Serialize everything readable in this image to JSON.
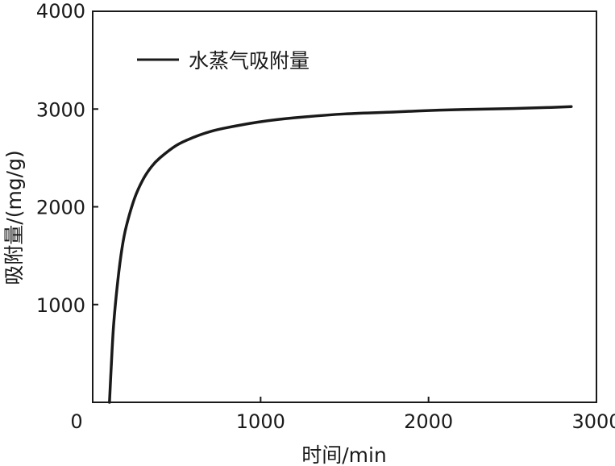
{
  "chart_data": {
    "type": "line",
    "xlabel": "时间/min",
    "ylabel": "吸附量/(mg/g)",
    "xlim": [
      0,
      3000
    ],
    "ylim": [
      0,
      4000
    ],
    "x_ticks": [
      "0",
      "1000",
      "2000",
      "3000"
    ],
    "y_ticks": [
      "1000",
      "2000",
      "3000",
      "4000"
    ],
    "x_tick_values": [
      0,
      1000,
      2000,
      3000
    ],
    "y_tick_values": [
      1000,
      2000,
      3000,
      4000
    ],
    "grid": false,
    "legend_position": "top-left",
    "series": [
      {
        "name": "水蒸气吸附量",
        "color": "#1a1a1a",
        "x": [
          100,
          110,
          125,
          150,
          175,
          200,
          250,
          300,
          350,
          400,
          500,
          600,
          700,
          800,
          1000,
          1200,
          1500,
          1800,
          2000,
          2200,
          2500,
          2700,
          2850
        ],
        "y": [
          0,
          350,
          800,
          1250,
          1580,
          1800,
          2090,
          2280,
          2410,
          2500,
          2630,
          2710,
          2770,
          2810,
          2870,
          2910,
          2950,
          2970,
          2985,
          2995,
          3005,
          3015,
          3025
        ]
      }
    ]
  }
}
